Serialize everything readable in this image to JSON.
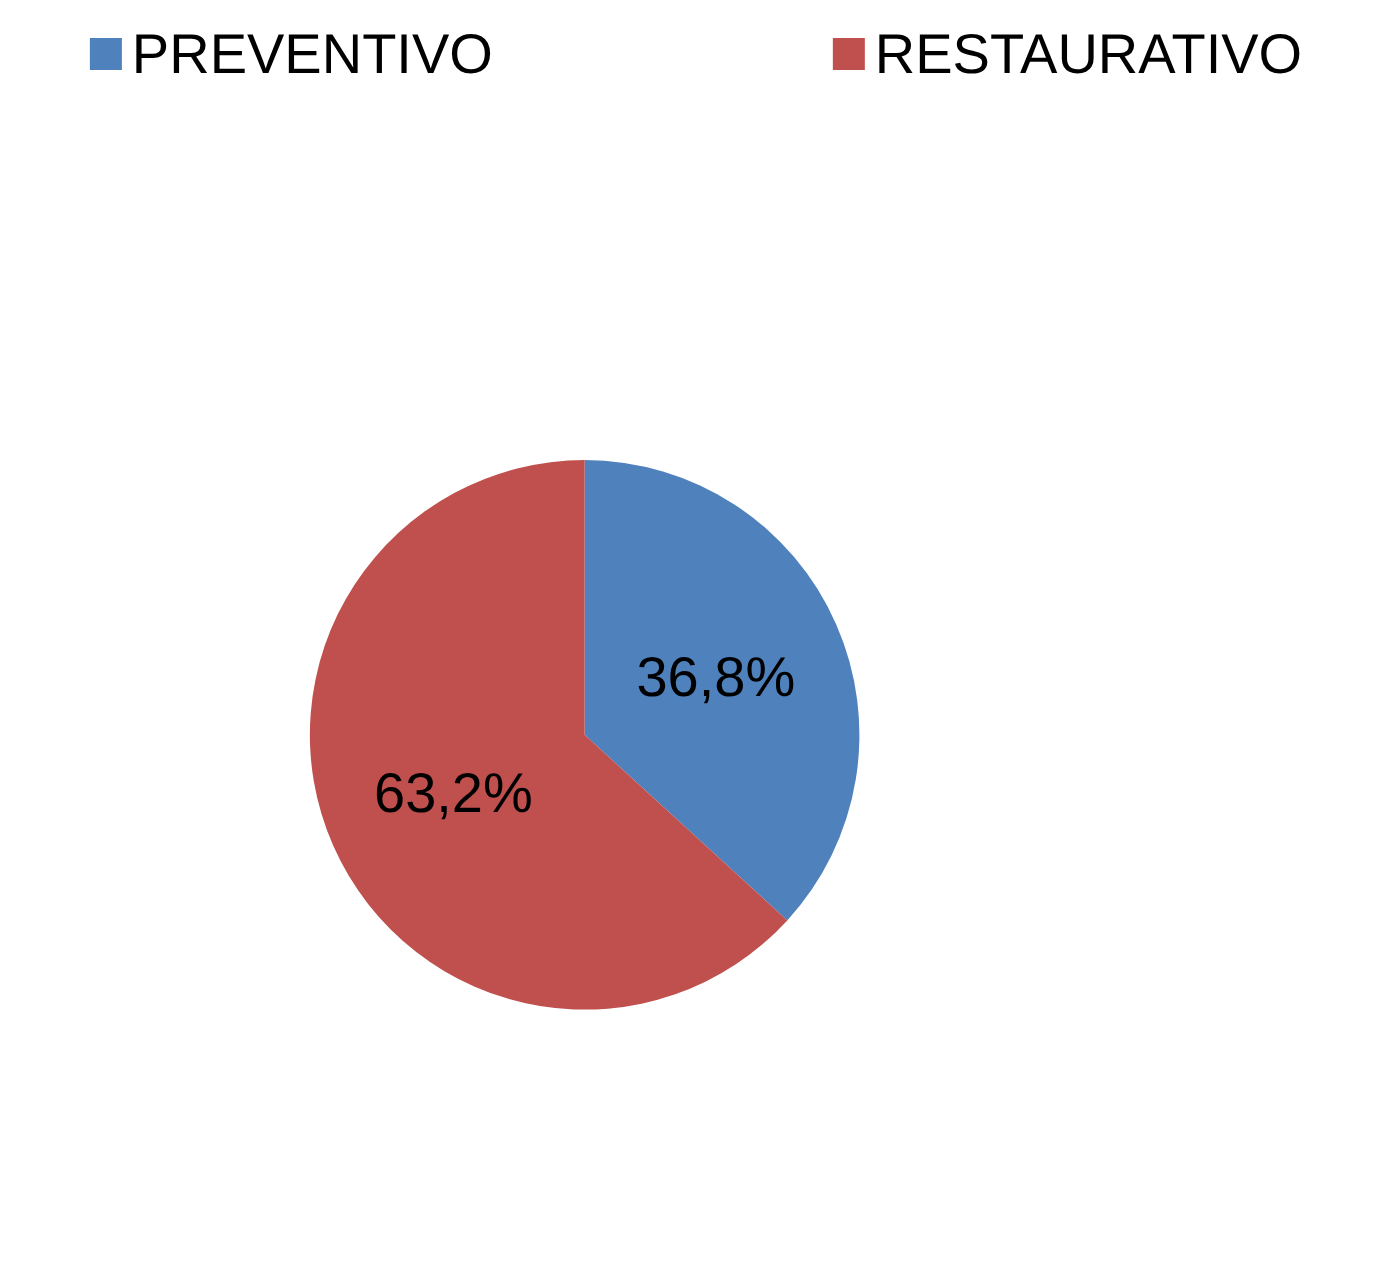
{
  "chart_data": {
    "type": "pie",
    "categories": [
      "PREVENTIVO",
      "RESTAURATIVO"
    ],
    "values": [
      36.8,
      63.2
    ],
    "colors": [
      "#4f81bd",
      "#c0504d"
    ],
    "value_labels": [
      "36,8%",
      "63,2%"
    ],
    "legend": "top"
  }
}
